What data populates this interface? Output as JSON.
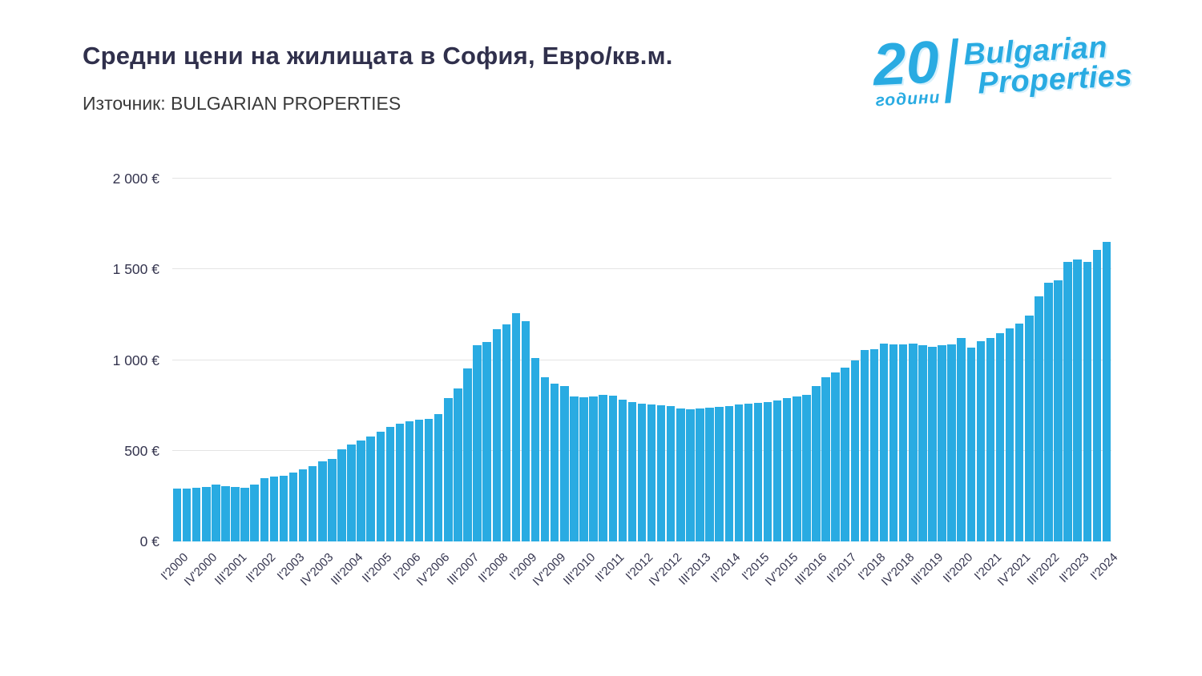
{
  "page": {
    "title": "Средни цени на жилищата в София, Евро/кв.м.",
    "subtitle": "Източник: BULGARIAN PROPERTIES"
  },
  "logo": {
    "number": "20",
    "years_label": "години",
    "brand_line1": "Bulgarian",
    "brand_line2": "Properties",
    "color": "#29abe2"
  },
  "chart_data": {
    "type": "bar",
    "title": "Средни цени на жилищата в София, Евро/кв.м.",
    "source": "Източник: BULGARIAN PROPERTIES",
    "unit": "EUR/кв.м.",
    "bar_color": "#29abe2",
    "grid": true,
    "legend": "none",
    "ylim": [
      0,
      2000
    ],
    "ytick_values": [
      0,
      500,
      1000,
      1500,
      2000
    ],
    "ytick_labels": [
      "0 €",
      "500 €",
      "1 000 €",
      "1 500 €",
      "2 000 €"
    ],
    "x_labels_every": 3,
    "xtick_labels": [
      "I'2000",
      "IV'2000",
      "III'2001",
      "II'2002",
      "I'2003",
      "IV'2003",
      "III'2004",
      "II'2005",
      "I'2006",
      "IV'2006",
      "III'2007",
      "II'2008",
      "I'2009",
      "IV'2009",
      "III'2010",
      "II'2011",
      "I'2012",
      "IV'2012",
      "III'2013",
      "II'2014",
      "I'2015",
      "IV'2015",
      "III'2016",
      "II'2017",
      "I'2018",
      "IV'2018",
      "III'2019",
      "II'2020",
      "I'2021",
      "IV'2021",
      "III'2022",
      "II'2023",
      "I'2024"
    ],
    "categories": [
      "I'2000",
      "II'2000",
      "III'2000",
      "IV'2000",
      "I'2001",
      "II'2001",
      "III'2001",
      "IV'2001",
      "I'2002",
      "II'2002",
      "III'2002",
      "IV'2002",
      "I'2003",
      "II'2003",
      "III'2003",
      "IV'2003",
      "I'2004",
      "II'2004",
      "III'2004",
      "IV'2004",
      "I'2005",
      "II'2005",
      "III'2005",
      "IV'2005",
      "I'2006",
      "II'2006",
      "III'2006",
      "IV'2006",
      "I'2007",
      "II'2007",
      "III'2007",
      "IV'2007",
      "I'2008",
      "II'2008",
      "III'2008",
      "IV'2008",
      "I'2009",
      "II'2009",
      "III'2009",
      "IV'2009",
      "I'2010",
      "II'2010",
      "III'2010",
      "IV'2010",
      "I'2011",
      "II'2011",
      "III'2011",
      "IV'2011",
      "I'2012",
      "II'2012",
      "III'2012",
      "IV'2012",
      "I'2013",
      "II'2013",
      "III'2013",
      "IV'2013",
      "I'2014",
      "II'2014",
      "III'2014",
      "IV'2014",
      "I'2015",
      "II'2015",
      "III'2015",
      "IV'2015",
      "I'2016",
      "II'2016",
      "III'2016",
      "IV'2016",
      "I'2017",
      "II'2017",
      "III'2017",
      "IV'2017",
      "I'2018",
      "II'2018",
      "III'2018",
      "IV'2018",
      "I'2019",
      "II'2019",
      "III'2019",
      "IV'2019",
      "I'2020",
      "II'2020",
      "III'2020",
      "IV'2020",
      "I'2021",
      "II'2021",
      "III'2021",
      "IV'2021",
      "I'2022",
      "II'2022",
      "III'2022",
      "IV'2022",
      "I'2023",
      "II'2023",
      "III'2023",
      "IV'2023",
      "I'2024"
    ],
    "values": [
      290,
      292,
      296,
      300,
      312,
      303,
      300,
      298,
      312,
      347,
      357,
      363,
      378,
      397,
      413,
      441,
      455,
      506,
      536,
      558,
      578,
      606,
      633,
      649,
      661,
      669,
      676,
      700,
      790,
      845,
      955,
      1080,
      1100,
      1170,
      1195,
      1260,
      1215,
      1010,
      905,
      870,
      855,
      800,
      795,
      800,
      810,
      805,
      780,
      770,
      760,
      755,
      750,
      745,
      735,
      730,
      735,
      738,
      742,
      748,
      755,
      760,
      765,
      770,
      778,
      790,
      800,
      810,
      855,
      905,
      930,
      960,
      1000,
      1055,
      1060,
      1090,
      1085,
      1085,
      1090,
      1080,
      1075,
      1080,
      1085,
      1120,
      1070,
      1105,
      1120,
      1150,
      1175,
      1200,
      1245,
      1350,
      1425,
      1440,
      1540,
      1555,
      1540,
      1605,
      1650
    ]
  }
}
